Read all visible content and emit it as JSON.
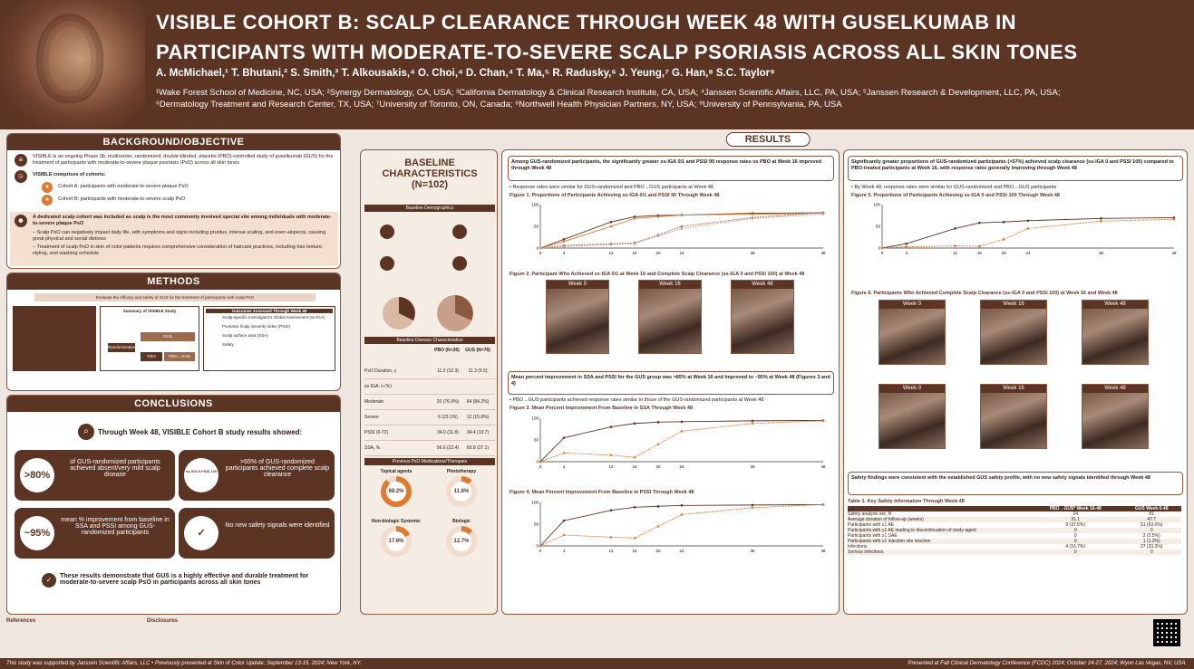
{
  "header": {
    "title_line1": "VISIBLE COHORT B: SCALP CLEARANCE THROUGH WEEK 48 WITH GUSELKUMAB IN",
    "title_line2": "PARTICIPANTS WITH MODERATE-TO-SEVERE SCALP PSORIASIS ACROSS ALL SKIN TONES",
    "authors": "A. McMichael,¹ T. Bhutani,² S. Smith,³ T. Alkousakis,⁴ O. Choi,⁴ D. Chan,⁴ T. Ma,⁵ R. Radusky,⁶ J. Yeung,⁷ G. Han,⁸ S.C. Taylor⁹",
    "affil_line1": "¹Wake Forest School of Medicine, NC, USA; ²Synergy Dermatology, CA, USA; ³California Dermatology & Clinical Research Institute, CA, USA; ⁴Janssen Scientific Affairs, LLC, PA, USA; ⁵Janssen Research & Development, LLC, PA, USA;",
    "affil_line2": "⁶Dermatology Treatment and Research Center, TX, USA; ⁷University of Toronto, ON, Canada; ⁸Northwell Health Physician Partners, NY, USA; ⁹University of Pennsylvania, PA, USA"
  },
  "background": {
    "heading": "BACKGROUND/OBJECTIVE",
    "p1": "VISIBLE is an ongoing Phase 3b, multicenter, randomized, double-blinded, placebo (PBO)-controlled study of guselkumab (GUS) for the treatment of participants with moderate-to-severe plaque psoriasis (PsO) across all skin tones",
    "p2": "VISIBLE comprises of cohorts:",
    "cohortA": "Cohort A: participants with moderate-to-severe plaque PsO",
    "cohortB": "Cohort B: participants with moderate-to-severe scalp PsO",
    "p3": "A dedicated scalp cohort was included as scalp is the most commonly involved special site among individuals with moderate-to-severe plaque PsO",
    "b1": "Scalp PsO can negatively impact daily life, with symptoms and signs including pruritus, intense scaling, and even alopecia, causing great physical and social distress",
    "b2": "Treatment of scalp PsO in skin of color patients requires comprehensive consideration of haircare practices, including hair texture, styling, and washing schedule"
  },
  "methods": {
    "heading": "METHODS",
    "flow_top": "Evaluate the efficacy and safety of GUS for the treatment of participants with scalp PsO",
    "summary": "Summary of VISIBLE Study",
    "randomization": "Randomization",
    "gus_arm": "GUS",
    "pbo_arm": "PBO",
    "gus_pbo": "PBO→GUS",
    "endpoints": "Outcomes Assessed Through Week 48",
    "ep1": "Scalp-specific Investigator's Global Assessment (ss-IGA)",
    "ep2": "Psoriasis Scalp Severity Index (PSSI)",
    "ep3": "Scalp surface area (SSA)",
    "ep4": "Safety"
  },
  "conclusions": {
    "heading": "CONCLUSIONS",
    "lead": "Through Week 48, VISIBLE Cohort B study results showed:",
    "c1_value": ">80%",
    "c1_text": "of GUS-randomized participants achieved absent/very mild scalp disease",
    "c2_value": "ss-IGA 0 PSSI 100",
    "c2_text": ">65% of GUS-randomized participants achieved complete scalp clearance",
    "c3_value": "~95%",
    "c3_text": "mean % improvement from baseline in SSA and PSSI among GUS-randomized participants",
    "c4_text": "No new safety signals were identified",
    "final": "These results demonstrate that GUS is a highly effective and durable treatment for moderate-to-severe scalp PsO in participants across all skin tones"
  },
  "results": {
    "heading": "RESULTS",
    "baseline_title": "BASELINE CHARACTERISTICS (N=102)",
    "demographics": "Baseline Demographics",
    "disease_chars": "Baseline Disease Characteristics",
    "col_pbo": "PBO (N=26)",
    "col_gus": "GUS (N=76)",
    "rows": [
      {
        "label": "PsO Duration, y",
        "pbo": "11.3 (12.3)",
        "gus": "11.3 (9.5)"
      },
      {
        "label": "ss-IGA, n (%)",
        "pbo": "",
        "gus": ""
      },
      {
        "label": "Moderate",
        "pbo": "20 (76.9%)",
        "gus": "64 (84.2%)"
      },
      {
        "label": "Severe",
        "pbo": "6 (23.1%)",
        "gus": "12 (15.8%)"
      },
      {
        "label": "PSSI (0-72)",
        "pbo": "34.0 (11.8)",
        "gus": "34.4 (13.7)"
      },
      {
        "label": "SSA, %",
        "pbo": "56.6 (22.4)",
        "gus": "60.8 (27.1)"
      }
    ],
    "prev_meds": "Previous PsO Medications/Therapies",
    "meds": [
      {
        "label": "Topical agents",
        "value": "89.2%"
      },
      {
        "label": "Phototherapy",
        "value": "11.8%"
      },
      {
        "label": "Non-biologic Systemic",
        "value": "17.6%"
      },
      {
        "label": "Biologic",
        "value": "12.7%"
      }
    ],
    "box1": "Among GUS-randomized participants, the significantly greater ss-IGA 0/1 and PSSI 90 response rates vs PBO at Week 16 improved through Week 48",
    "bullet1": "Response rates were similar for GUS-randomized and PBO→GUS participants at Week 48",
    "fig1": "Figure 1. Proportions of Participants Achieving ss-IGA 0/1 and PSSI 90 Through Week 48",
    "fig2": "Figure 2. Participant Who Achieved ss-IGA 0/1 at Week 16 and Complete Scalp Clearance (ss-IGA 0 and PSSI 100) at Week 48",
    "box2": "Mean percent improvement in SSA and PSSI for the GUS group was >85% at Week 16 and improved to ~95% at Week 48 (Figures 3 and 4)",
    "bullet2": "PBO→GUS participants achieved response rates similar to those of the GUS-randomized participants at Week 48",
    "fig3": "Figure 3. Mean Percent Improvement From Baseline in SSA Through Week 48",
    "fig4": "Figure 4. Mean Percent Improvement From Baseline in PSSI Through Week 48",
    "box3": "Significantly greater proportions of GUS-randomized participants (>57%) achieved scalp clearance (ss-IGA 0 and PSSI 100) compared to PBO-treated participants at Week 16, with response rates generally improving through Week 48",
    "bullet3": "By Week 48, response rates were similar for GUS-randomized and PBO→GUS participants",
    "fig5": "Figure 5. Proportions of Participants Achieving ss-IGA 0 and PSSI 100 Through Week 48",
    "fig6": "Figure 6. Participants Who Achieved Complete Scalp Clearance (ss-IGA 0 and PSSI 100) at Week 16 and Week 48",
    "box4": "Safety findings were consistent with the established GUS safety profile, with no new safety signals identified through Week 48",
    "table1": "Table 1. Key Safety Information Through Week 48",
    "safety_cols": [
      "PBO→GUS* Week 16-48",
      "GUS Week 0-48"
    ],
    "safety_rows": [
      {
        "label": "Safety analysis set, N",
        "a": "24",
        "b": "81"
      },
      {
        "label": "Average duration of follow-up (weeks)",
        "a": "31.1",
        "b": "47.7"
      },
      {
        "label": "Participants with ≥1 AE",
        "a": "9 (37.5%)",
        "b": "51 (63.0%)"
      },
      {
        "label": "Participants with ≥1 AE leading to discontinuation of study agent",
        "a": "0",
        "b": "0"
      },
      {
        "label": "Participants with ≥1 SAE",
        "a": "0",
        "b": "2 (2.5%)"
      },
      {
        "label": "Participants with ≥1 injection site reaction",
        "a": "0",
        "b": "1 (1.2%)"
      },
      {
        "label": "Infections",
        "a": "4 (16.7%)",
        "b": "27 (33.3%)"
      },
      {
        "label": "Serious infections",
        "a": "0",
        "b": "0"
      }
    ],
    "weeks": {
      "w0": "Week 0",
      "w16": "Week 16",
      "w48": "Week 48"
    }
  },
  "footer": {
    "references": "References",
    "disclosures": "Disclosures",
    "left": "This study was supported by Janssen Scientific Affairs, LLC  •  Previously presented at Skin of Color Update; September 13-15, 2024; New York, NY.",
    "right": "Presented at Fall Clinical Dermatology Conference (FCDC) 2024; October 24-27, 2024; Wynn Las Vegas, NV, USA."
  },
  "chart_data": [
    {
      "type": "line",
      "title": "Figure 1. Proportions of Participants Achieving ss-IGA 0/1 and PSSI 90 Through Week 48",
      "x": [
        0,
        4,
        12,
        16,
        20,
        24,
        36,
        48
      ],
      "ylim": [
        0,
        100
      ],
      "series": [
        {
          "name": "ss-IGA 0/1 GUS",
          "values": [
            0,
            20,
            60,
            72,
            75,
            76,
            80,
            81
          ]
        },
        {
          "name": "PSSI 90 GUS",
          "values": [
            0,
            15,
            50,
            68,
            72,
            76,
            78,
            80
          ]
        },
        {
          "name": "ss-IGA 0/1 PBO→GUS",
          "values": [
            0,
            6,
            10,
            12,
            30,
            50,
            70,
            82
          ]
        },
        {
          "name": "PSSI 90 PBO→GUS",
          "values": [
            0,
            4,
            8,
            10,
            28,
            45,
            68,
            78
          ]
        }
      ]
    },
    {
      "type": "line",
      "title": "Figure 3. Mean Percent Improvement From Baseline in SSA Through Week 48",
      "x": [
        0,
        4,
        12,
        16,
        20,
        24,
        36,
        48
      ],
      "ylim": [
        0,
        100
      ],
      "series": [
        {
          "name": "GUS",
          "values": [
            0,
            55,
            80,
            88,
            91,
            92,
            94,
            95
          ]
        },
        {
          "name": "PBO→GUS",
          "values": [
            0,
            20,
            15,
            10,
            40,
            70,
            88,
            94
          ]
        }
      ]
    },
    {
      "type": "line",
      "title": "Figure 4. Mean Percent Improvement From Baseline in PSSI Through Week 48",
      "x": [
        0,
        4,
        12,
        16,
        20,
        24,
        36,
        48
      ],
      "ylim": [
        0,
        100
      ],
      "series": [
        {
          "name": "GUS",
          "values": [
            0,
            58,
            82,
            89,
            91,
            93,
            94,
            95
          ]
        },
        {
          "name": "PBO→GUS",
          "values": [
            0,
            25,
            20,
            18,
            45,
            72,
            88,
            95
          ]
        }
      ]
    },
    {
      "type": "line",
      "title": "Figure 5. Proportions of Participants Achieving ss-IGA 0 and PSSI 100 Through Week 48",
      "x": [
        0,
        4,
        12,
        16,
        20,
        24,
        36,
        48
      ],
      "ylim": [
        0,
        100
      ],
      "series": [
        {
          "name": "GUS",
          "values": [
            0,
            10,
            45,
            58,
            60,
            63,
            68,
            70
          ]
        },
        {
          "name": "PBO→GUS",
          "values": [
            0,
            3,
            5,
            4,
            20,
            45,
            62,
            66
          ]
        }
      ]
    }
  ]
}
